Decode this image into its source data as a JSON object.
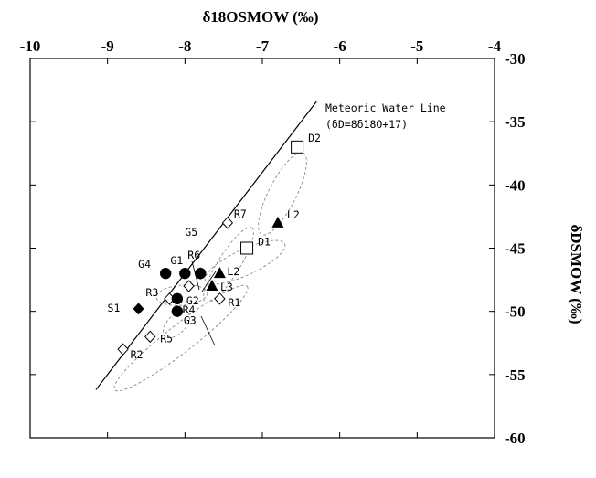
{
  "chart_data": {
    "type": "scatter",
    "title": "",
    "xlabel": "δ18OSMOW (‰)",
    "ylabel": "δDSMOW (‰)",
    "xlim": [
      -10,
      -4
    ],
    "ylim": [
      -60,
      -30
    ],
    "x_ticks": [
      "-10",
      "-9",
      "-8",
      "-7",
      "-6",
      "-5",
      "-4"
    ],
    "y_ticks": [
      "-30",
      "-35",
      "-40",
      "-45",
      "-50",
      "-55",
      "-60"
    ],
    "x_tick_values": [
      -10,
      -9,
      -8,
      -7,
      -6,
      -5,
      -4
    ],
    "y_tick_values": [
      -30,
      -35,
      -40,
      -45,
      -50,
      -55,
      -60
    ],
    "grid": false,
    "meteoric_line": {
      "label_line1": "Meteoric Water Line",
      "label_line2": "(δD=8δ18O+17)",
      "slope": 8,
      "intercept": 17,
      "x_start": -9.15,
      "x_end": -6.3
    },
    "points": [
      {
        "label": "D2",
        "marker": "open-square",
        "x": -6.55,
        "y": -37
      },
      {
        "label": "D1",
        "marker": "open-square",
        "x": -7.2,
        "y": -45
      },
      {
        "label": "L2",
        "marker": "filled-triangle",
        "x": -6.8,
        "y": -43
      },
      {
        "label": "L2",
        "marker": "filled-triangle",
        "x": -7.55,
        "y": -47
      },
      {
        "label": "L3",
        "marker": "filled-triangle",
        "x": -7.65,
        "y": -48
      },
      {
        "label": "R7",
        "marker": "open-diamond",
        "x": -7.45,
        "y": -43
      },
      {
        "label": "R6",
        "marker": "open-diamond",
        "x": -7.8,
        "y": -47
      },
      {
        "label": "R1",
        "marker": "open-diamond",
        "x": -7.55,
        "y": -49
      },
      {
        "label": "R3",
        "marker": "open-diamond",
        "x": -8.2,
        "y": -49
      },
      {
        "label": "R4",
        "marker": "open-diamond",
        "x": -7.95,
        "y": -48
      },
      {
        "label": "R5",
        "marker": "open-diamond",
        "x": -8.45,
        "y": -52
      },
      {
        "label": "R2",
        "marker": "open-diamond",
        "x": -8.8,
        "y": -53
      },
      {
        "label": "G1",
        "marker": "filled-circle",
        "x": -8.0,
        "y": -47
      },
      {
        "label": "G4",
        "marker": "filled-circle",
        "x": -8.25,
        "y": -47
      },
      {
        "label": "G5",
        "marker": "filled-circle",
        "x": -7.8,
        "y": -47
      },
      {
        "label": "G2",
        "marker": "filled-circle",
        "x": -8.1,
        "y": -49
      },
      {
        "label": "G3",
        "marker": "filled-circle",
        "x": -8.1,
        "y": -50
      },
      {
        "label": "S1",
        "marker": "filled-diamond",
        "x": -8.6,
        "y": -49.8
      }
    ]
  }
}
